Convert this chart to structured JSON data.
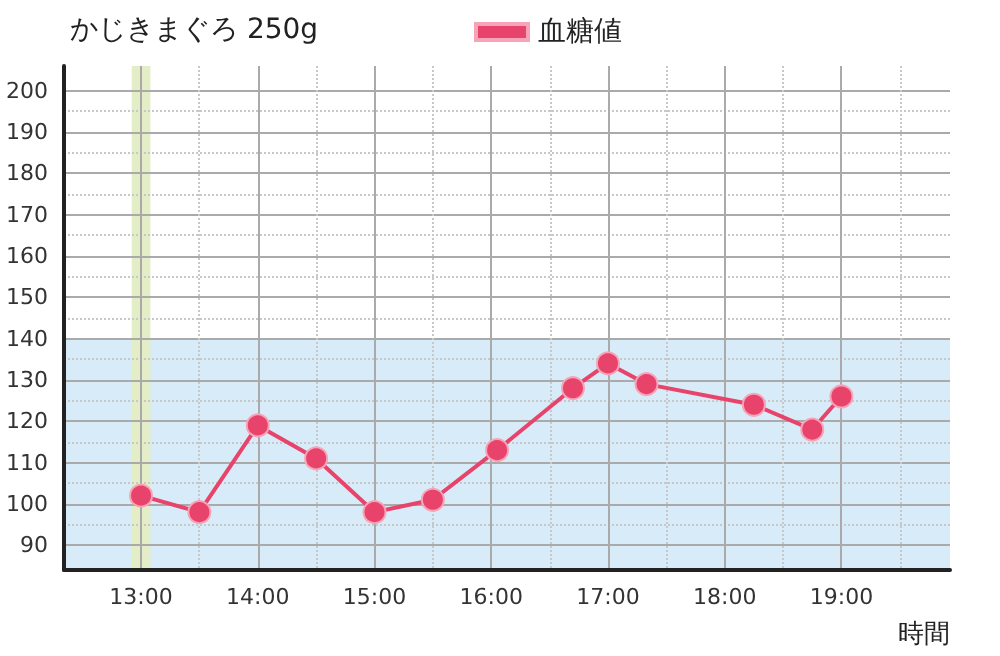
{
  "chart_data": {
    "type": "line",
    "title": "かじきまぐろ 250g",
    "xlabel": "時間",
    "x": [
      13.0,
      13.5,
      14.0,
      14.5,
      15.0,
      15.5,
      16.05,
      16.7,
      17.0,
      17.33,
      18.25,
      18.75,
      19.0
    ],
    "series": [
      {
        "name": "血糖値",
        "color": "#e8436a",
        "values": [
          102,
          98,
          119,
          111,
          98,
          101,
          113,
          128,
          134,
          129,
          124,
          118,
          126
        ]
      }
    ],
    "xlim": [
      12.34,
      19.93
    ],
    "xticks": [
      {
        "value": 13,
        "label": "13:00"
      },
      {
        "value": 13.5,
        "label": null
      },
      {
        "value": 14,
        "label": "14:00"
      },
      {
        "value": 14.5,
        "label": null
      },
      {
        "value": 15,
        "label": "15:00"
      },
      {
        "value": 15.5,
        "label": null
      },
      {
        "value": 16,
        "label": "16:00"
      },
      {
        "value": 16.5,
        "label": null
      },
      {
        "value": 17,
        "label": "17:00"
      },
      {
        "value": 17.5,
        "label": null
      },
      {
        "value": 18,
        "label": "18:00"
      },
      {
        "value": 18.5,
        "label": null
      },
      {
        "value": 19,
        "label": "19:00"
      },
      {
        "value": 19.5,
        "label": null
      }
    ],
    "ylim": [
      84,
      206
    ],
    "yticks": [
      90,
      {
        "value": 95,
        "label": null
      },
      100,
      {
        "value": 105,
        "label": null
      },
      110,
      {
        "value": 115,
        "label": null
      },
      120,
      {
        "value": 125,
        "label": null
      },
      130,
      {
        "value": 135,
        "label": null
      },
      140,
      {
        "value": 145,
        "label": null
      },
      150,
      {
        "value": 155,
        "label": null
      },
      160,
      {
        "value": 165,
        "label": null
      },
      170,
      {
        "value": 175,
        "label": null
      },
      180,
      {
        "value": 185,
        "label": null
      },
      190,
      {
        "value": 195,
        "label": null
      },
      200
    ],
    "bands": [
      {
        "axis": "y",
        "from": 84,
        "to": 140,
        "color": "#d8ebf8"
      },
      {
        "axis": "x",
        "from": 12.92,
        "to": 13.08,
        "color": "#e4eec6"
      }
    ],
    "grid": true,
    "legend": "top",
    "marker": "circle",
    "line_style": "solid"
  }
}
